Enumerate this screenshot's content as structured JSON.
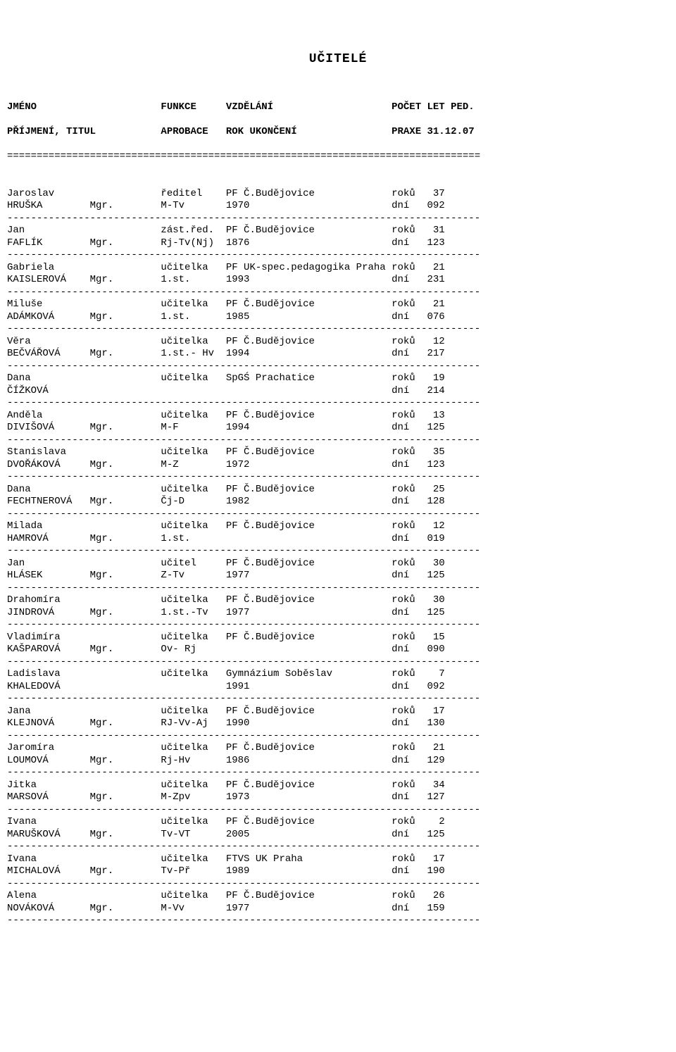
{
  "title": "UČITELÉ",
  "header": {
    "line1": "JMÉNO                     FUNKCE     VZDĚLÁNÍ                    POČET LET PED.",
    "line2": "PŘÍJMENÍ, TITUL           APROBACE   ROK UKONČENÍ                PRAXE 31.12.07"
  },
  "rules": {
    "double": "================================================================================",
    "dash": "--------------------------------------------------------------------------------"
  },
  "style": {
    "font_family": "Courier New",
    "font_size_pt": 11,
    "text_color": "#000000",
    "background_color": "#ffffff",
    "columns_char_start": {
      "first_name": 0,
      "title": 14,
      "function": 26,
      "education": 37,
      "years_label": 65,
      "years_value": 72
    },
    "line_width_chars": 80
  },
  "teachers": [
    {
      "first": "Jaroslav",
      "surname": "HRUŠKA",
      "titul": "Mgr.",
      "func": "ředitel",
      "aprob": "M-Tv",
      "edu": "PF Č.Budějovice",
      "rok": "1970",
      "roku": "37",
      "dni": "092"
    },
    {
      "first": "Jan",
      "surname": "FAFLÍK",
      "titul": "Mgr.",
      "func": "zást.řed.",
      "aprob": "Rj-Tv(Nj)",
      "edu": "PF Č.Budějovice",
      "rok": "1876",
      "roku": "31",
      "dni": "123"
    },
    {
      "first": "Gabriela",
      "surname": "KAISLEROVÁ",
      "titul": "Mgr.",
      "func": "učitelka",
      "aprob": "1.st.",
      "edu": "PF UK-spec.pedagogika Praha",
      "rok": "1993",
      "roku": "21",
      "dni": "231"
    },
    {
      "first": "Miluše",
      "surname": "ADÁMKOVÁ",
      "titul": "Mgr.",
      "func": "učitelka",
      "aprob": "1.st.",
      "edu": "PF Č.Budějovice",
      "rok": "1985",
      "roku": "21",
      "dni": "076"
    },
    {
      "first": "Věra",
      "surname": "BEČVÁŘOVÁ",
      "titul": "Mgr.",
      "func": "učitelka",
      "aprob": "1.st.- Hv",
      "edu": "PF Č.Budějovice",
      "rok": "1994",
      "roku": "12",
      "dni": "217"
    },
    {
      "first": "Dana",
      "surname": "ČÍŽKOVÁ",
      "titul": "",
      "func": "učitelka",
      "aprob": "",
      "edu": "SpGŚ Prachatice",
      "rok": "",
      "roku": "19",
      "dni": "214"
    },
    {
      "first": "Anděla",
      "surname": "DIVIŠOVÁ",
      "titul": "Mgr.",
      "func": "učitelka",
      "aprob": "M-F",
      "edu": "PF Č.Budějovice",
      "rok": "1994",
      "roku": "13",
      "dni": "125"
    },
    {
      "first": "Stanislava",
      "surname": "DVOŘÁKOVÁ",
      "titul": "Mgr.",
      "func": "učitelka",
      "aprob": "M-Z",
      "edu": "PF Č.Budějovice",
      "rok": "1972",
      "roku": "35",
      "dni": "123"
    },
    {
      "first": "Dana",
      "surname": "FECHTNEROVÁ",
      "titul": "Mgr.",
      "func": "učitelka",
      "aprob": "Čj-D",
      "edu": "PF Č.Budějovice",
      "rok": "1982",
      "roku": "25",
      "dni": "128"
    },
    {
      "first": "Milada",
      "surname": "HAMROVÁ",
      "titul": "Mgr.",
      "func": "učitelka",
      "aprob": "1.st.",
      "edu": "PF Č.Budějovice",
      "rok": "",
      "roku": "12",
      "dni": "019"
    },
    {
      "first": "Jan",
      "surname": "HLÁSEK",
      "titul": "Mgr.",
      "func": "učitel",
      "aprob": "Z-Tv",
      "edu": "PF Č.Budějovice",
      "rok": "1977",
      "roku": "30",
      "dni": "125"
    },
    {
      "first": "Drahomíra",
      "surname": "JINDROVÁ",
      "titul": "Mgr.",
      "func": "učitelka",
      "aprob": "1.st.-Tv",
      "edu": "PF Č.Budějovice",
      "rok": "1977",
      "roku": "30",
      "dni": "125"
    },
    {
      "first": "Vladimíra",
      "surname": "KAŠPAROVÁ",
      "titul": "Mgr.",
      "func": "učitelka",
      "aprob": "Ov- Rj",
      "edu": "PF Č.Budějovice",
      "rok": "",
      "roku": "15",
      "dni": "090"
    },
    {
      "first": "Ladislava",
      "surname": "KHALEDOVÁ",
      "titul": "",
      "func": "učitelka",
      "aprob": "",
      "edu": "Gymnázium Soběslav",
      "rok": "1991",
      "roku": "7",
      "dni": "092"
    },
    {
      "first": "Jana",
      "surname": "KLEJNOVÁ",
      "titul": "Mgr.",
      "func": "učitelka",
      "aprob": "RJ-Vv-Aj",
      "edu": "PF Č.Budějovice",
      "rok": "1990",
      "roku": "17",
      "dni": "130"
    },
    {
      "first": "Jaromíra",
      "surname": "LOUMOVÁ",
      "titul": "Mgr.",
      "func": "učitelka",
      "aprob": "Rj-Hv",
      "edu": "PF Č.Budějovice",
      "rok": "1986",
      "roku": "21",
      "dni": "129"
    },
    {
      "first": "Jitka",
      "surname": "MARSOVÁ",
      "titul": "Mgr.",
      "func": "učitelka",
      "aprob": "M-Zpv",
      "edu": "PF Č.Budějovice",
      "rok": "1973",
      "roku": "34",
      "dni": "127"
    },
    {
      "first": "Ivana",
      "surname": "MARUŠKOVÁ",
      "titul": "Mgr.",
      "func": "učitelka",
      "aprob": "Tv-VT",
      "edu": "PF Č.Budějovice",
      "rok": "2005",
      "roku": "2",
      "dni": "125"
    },
    {
      "first": "Ivana",
      "surname": "MICHALOVÁ",
      "titul": "Mgr.",
      "func": "učitelka",
      "aprob": "Tv-Př",
      "edu": "FTVS UK Praha",
      "rok": "1989",
      "roku": "17",
      "dni": "190"
    },
    {
      "first": "Alena",
      "surname": "NOVÁKOVÁ",
      "titul": "Mgr.",
      "func": "učitelka",
      "aprob": "M-Vv",
      "edu": "PF Č.Budějovice",
      "rok": "1977",
      "roku": "26",
      "dni": "159"
    }
  ]
}
